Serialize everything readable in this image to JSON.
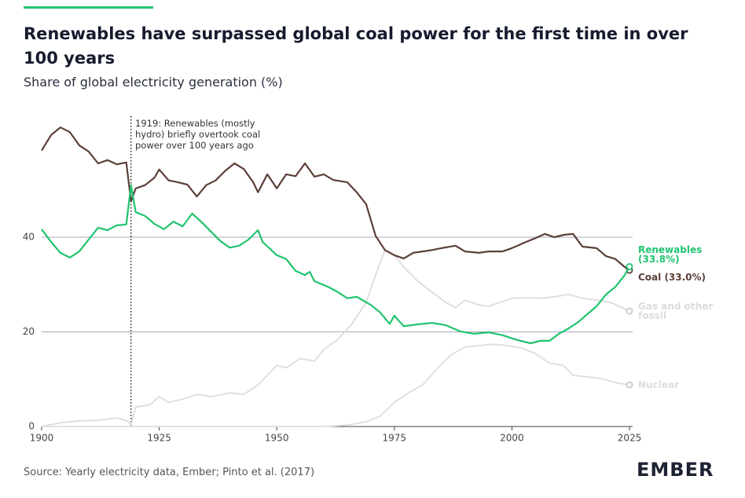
{
  "chart_data": {
    "type": "line",
    "title": "Renewables have surpassed global coal power for the first time in over 100 years",
    "subtitle": "Share of global electricity generation (%)",
    "source": "Source: Yearly electricity data, Ember; Pinto et al. (2017)",
    "brand": "EMBER",
    "annotation": {
      "x": 1919,
      "text": "1919: Renewables (mostly hydro) briefly overtook coal power over 100 years ago"
    },
    "xlim": [
      1900,
      2025
    ],
    "xticks": [
      1900,
      1925,
      1950,
      1975,
      2000,
      2025
    ],
    "ylim": [
      0,
      65
    ],
    "yticks": [
      0,
      20,
      40
    ],
    "grid": true,
    "series": [
      {
        "name": "Gas and other fossil",
        "color": "#dcdcdc",
        "x": [
          1900,
          1904,
          1908,
          1912,
          1916,
          1918,
          1919,
          1920,
          1923,
          1925,
          1927,
          1930,
          1933,
          1936,
          1940,
          1943,
          1946,
          1948,
          1950,
          1952,
          1955,
          1958,
          1960,
          1963,
          1966,
          1969,
          1971,
          1973,
          1975,
          1977,
          1980,
          1983,
          1986,
          1988,
          1990,
          1993,
          1995,
          1998,
          2000,
          2003,
          2006,
          2009,
          2012,
          2015,
          2018,
          2021,
          2025
        ],
        "values": [
          0,
          0.8,
          1.2,
          1.3,
          1.8,
          1.3,
          0.5,
          4.1,
          4.6,
          6.3,
          5.1,
          5.8,
          6.8,
          6.3,
          7.1,
          6.8,
          8.8,
          10.8,
          12.9,
          12.4,
          14.4,
          13.8,
          16.3,
          18.4,
          21.7,
          26.2,
          32,
          37.3,
          36.2,
          33.7,
          30.7,
          28.4,
          26.2,
          25.1,
          26.7,
          25.7,
          25.4,
          26.4,
          27.1,
          27.2,
          27.1,
          27.4,
          27.9,
          27.1,
          26.7,
          26.2,
          24.4
        ]
      },
      {
        "name": "Nuclear",
        "color": "#dedede",
        "x": [
          1900,
          1955,
          1960,
          1965,
          1969,
          1972,
          1975,
          1978,
          1981,
          1984,
          1987,
          1990,
          1993,
          1996,
          1999,
          2002,
          2005,
          2008,
          2011,
          2013,
          2016,
          2019,
          2022,
          2025
        ],
        "values": [
          0,
          0,
          0,
          0.3,
          1,
          2.2,
          5.1,
          7.1,
          8.8,
          12.1,
          15.1,
          16.8,
          17.1,
          17.4,
          17.1,
          16.6,
          15.4,
          13.4,
          12.9,
          10.8,
          10.5,
          10.1,
          9.3,
          8.8
        ]
      },
      {
        "name": "Coal (33.0%)",
        "color": "#5b4038",
        "x": [
          1900,
          1902,
          1904,
          1906,
          1908,
          1910,
          1912,
          1914,
          1916,
          1918,
          1919,
          1920,
          1922,
          1924,
          1925,
          1927,
          1929,
          1931,
          1933,
          1935,
          1937,
          1939,
          1941,
          1943,
          1945,
          1946,
          1948,
          1950,
          1952,
          1954,
          1956,
          1958,
          1960,
          1962,
          1965,
          1967,
          1969,
          1971,
          1973,
          1975,
          1977,
          1979,
          1981,
          1983,
          1985,
          1988,
          1990,
          1993,
          1995,
          1998,
          2000,
          2003,
          2005,
          2007,
          2009,
          2011,
          2013,
          2015,
          2018,
          2020,
          2022,
          2024,
          2025
        ],
        "values": [
          58.3,
          61.6,
          63.2,
          62.2,
          59.4,
          58.1,
          55.6,
          56.3,
          55.4,
          55.8,
          47.6,
          50.3,
          51,
          52.6,
          54.3,
          52,
          51.6,
          51.1,
          48.6,
          51,
          52,
          54,
          55.6,
          54.4,
          51.6,
          49.5,
          53.3,
          50.3,
          53.3,
          52.9,
          55.6,
          52.8,
          53.3,
          52.1,
          51.6,
          49.5,
          47,
          40.3,
          37.3,
          36.2,
          35.5,
          36.7,
          37,
          37.3,
          37.7,
          38.2,
          37,
          36.7,
          37,
          37,
          37.7,
          39,
          39.8,
          40.7,
          40,
          40.5,
          40.7,
          38,
          37.7,
          36,
          35.4,
          33.7,
          33.0
        ]
      },
      {
        "name": "Renewables (33.8%)",
        "color": "#1fc46f",
        "x": [
          1900,
          1902,
          1904,
          1906,
          1908,
          1910,
          1912,
          1914,
          1916,
          1918,
          1919,
          1920,
          1922,
          1924,
          1926,
          1928,
          1930,
          1932,
          1934,
          1936,
          1938,
          1940,
          1942,
          1944,
          1946,
          1947,
          1950,
          1952,
          1954,
          1956,
          1957,
          1958,
          1961,
          1963,
          1965,
          1967,
          1970,
          1972,
          1974,
          1975,
          1977,
          1980,
          1983,
          1986,
          1989,
          1992,
          1995,
          1998,
          2001,
          2004,
          2006,
          2008,
          2010,
          2012,
          2014,
          2016,
          2018,
          2020,
          2022,
          2024,
          2025
        ],
        "values": [
          41.7,
          39,
          36.7,
          35.7,
          37,
          39.5,
          42,
          41.5,
          42.5,
          42.7,
          51,
          45.3,
          44.5,
          42.8,
          41.7,
          43.3,
          42.3,
          45,
          43.2,
          41.2,
          39.2,
          37.8,
          38.2,
          39.5,
          41.5,
          39,
          36.2,
          35.4,
          32.9,
          32,
          32.7,
          30.7,
          29.5,
          28.4,
          27.1,
          27.4,
          25.7,
          24.1,
          21.7,
          23.4,
          21.2,
          21.6,
          21.9,
          21.4,
          20.1,
          19.6,
          19.9,
          19.3,
          18.3,
          17.6,
          18.1,
          18.1,
          19.6,
          20.7,
          22,
          23.7,
          25.4,
          27.9,
          29.5,
          32,
          33.8
        ]
      }
    ]
  }
}
